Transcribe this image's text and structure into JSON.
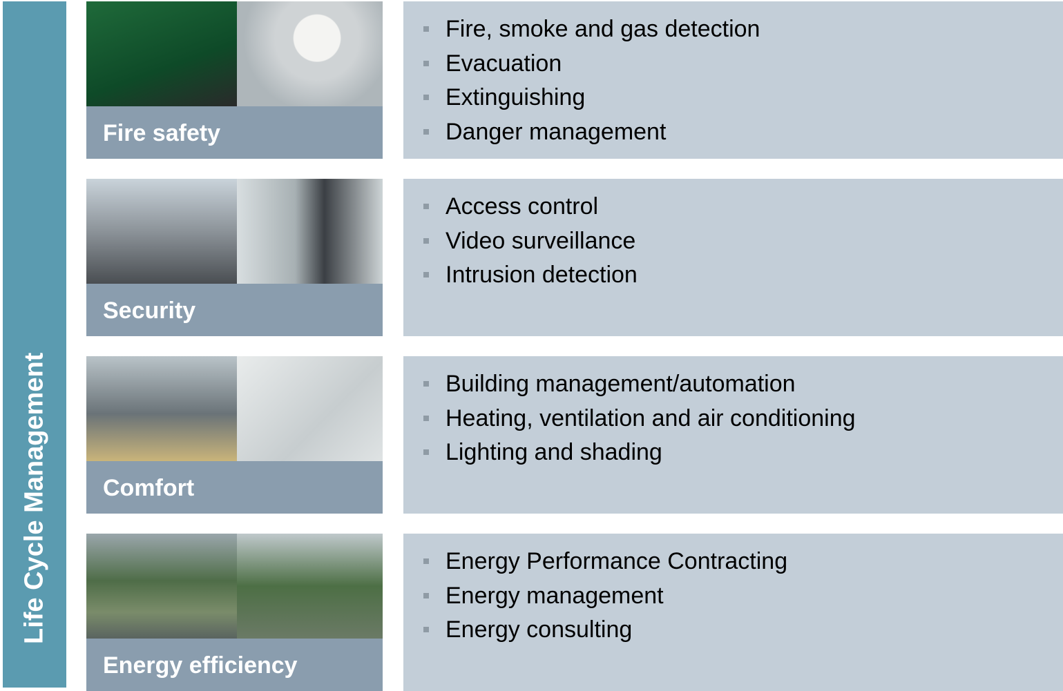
{
  "side_title": "Life Cycle Management",
  "sections": [
    {
      "label": "Fire safety",
      "items": [
        "Fire, smoke and gas detection",
        "Evacuation",
        "Extinguishing",
        "Danger management"
      ]
    },
    {
      "label": "Security",
      "items": [
        "Access control",
        "Video surveillance",
        "Intrusion detection"
      ]
    },
    {
      "label": "Comfort",
      "items": [
        "Building management/automation",
        "Heating, ventilation and air conditioning",
        "Lighting and shading"
      ]
    },
    {
      "label": "Energy efficiency",
      "items": [
        "Energy Performance Contracting",
        "Energy management",
        "Energy consulting"
      ]
    }
  ]
}
